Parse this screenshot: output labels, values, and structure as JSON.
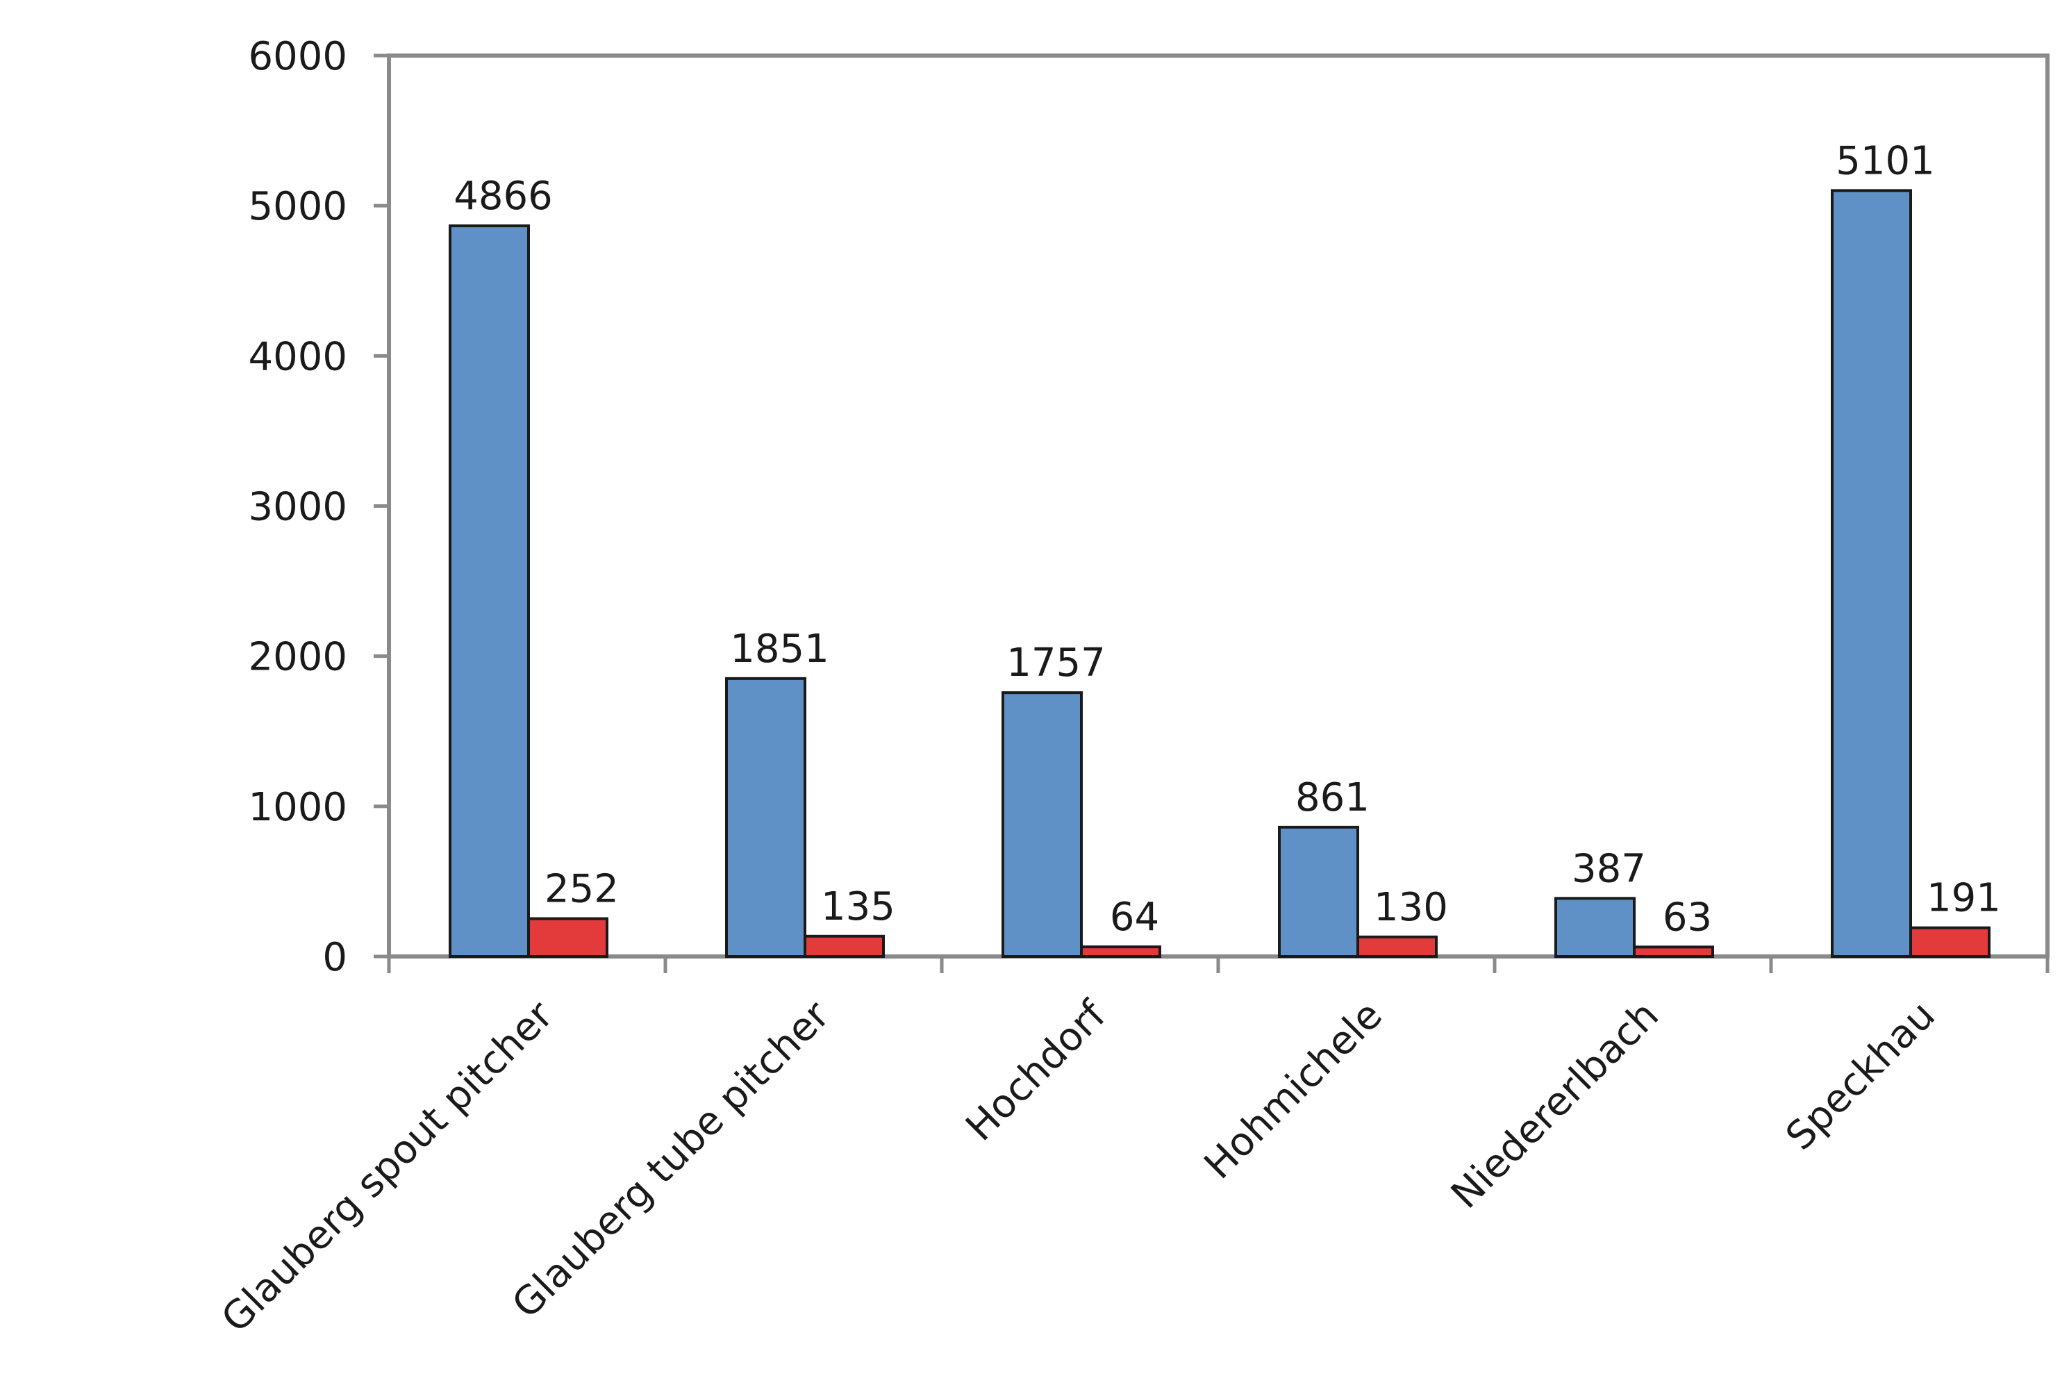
{
  "chart_data": {
    "type": "bar",
    "title": "",
    "xlabel": "",
    "ylabel": "",
    "ylim": [
      0,
      6000
    ],
    "yticks": [
      0,
      1000,
      2000,
      3000,
      4000,
      5000,
      6000
    ],
    "yticks_text": [
      "0",
      "1000",
      "2000",
      "3000",
      "4000",
      "5000",
      "6000"
    ],
    "grid": false,
    "legend": "none",
    "categories": [
      "Glauberg spout pitcher",
      "Glauberg tube pitcher",
      "Hochdorf",
      "Hohmichele",
      "Niedererlbach",
      "Speckhau"
    ],
    "series": [
      {
        "color": "#5f91c6",
        "values": [
          4866,
          1851,
          1757,
          861,
          387,
          5101
        ],
        "labels": [
          "4866",
          "1851",
          "1757",
          "861",
          "387",
          "5101"
        ]
      },
      {
        "color": "#e33a3c",
        "values": [
          252,
          135,
          64,
          130,
          63,
          191
        ],
        "labels": [
          "252",
          "135",
          "64",
          "130",
          "63",
          "191"
        ]
      }
    ]
  }
}
